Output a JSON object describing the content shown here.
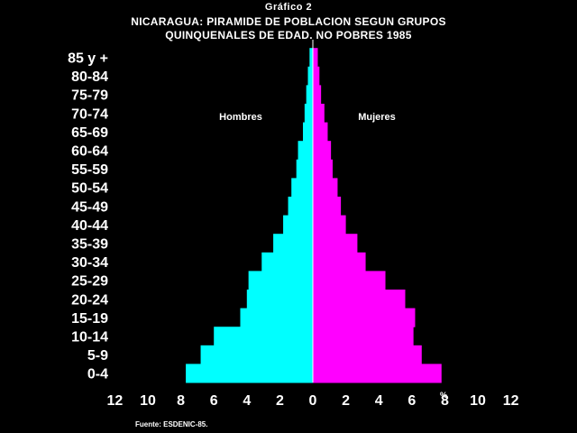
{
  "header": {
    "chart_label": "Gráfico 2",
    "title_line1": "NICARAGUA: PIRAMIDE DE POBLACION SEGUN GRUPOS",
    "title_line2": "QUINQUENALES DE EDAD. NO POBRES 1985"
  },
  "footer": {
    "source": "Fuente: ESDENIC-85."
  },
  "colors": {
    "background": "#000000",
    "hombres": "#00ffff",
    "mujeres": "#ff00ff",
    "text": "#ffffff",
    "axis": "#ffffff"
  },
  "chart_data": {
    "type": "bar",
    "orientation": "horizontal-pyramid",
    "title": "NICARAGUA: PIRAMIDE DE POBLACION SEGUN GRUPOS QUINQUENALES DE EDAD. NO POBRES 1985",
    "xlabel": "%",
    "xlim": [
      -12,
      12
    ],
    "x_tick_values": [
      -12,
      -10,
      -8,
      -6,
      -4,
      -2,
      0,
      2,
      4,
      6,
      8,
      10,
      12
    ],
    "x_tick_labels": [
      "12",
      "10",
      "8",
      "6",
      "4",
      "2",
      "0",
      "2",
      "4",
      "6",
      "8",
      "10",
      "12"
    ],
    "categories": [
      "0-4",
      "5-9",
      "10-14",
      "15-19",
      "20-24",
      "25-29",
      "30-34",
      "35-39",
      "40-44",
      "45-49",
      "50-54",
      "55-59",
      "60-64",
      "65-69",
      "70-74",
      "75-79",
      "80-84",
      "85 y +"
    ],
    "series": [
      {
        "name": "Hombres",
        "color": "#00ffff",
        "values": [
          7.7,
          6.8,
          6.0,
          4.4,
          4.0,
          3.9,
          3.1,
          2.4,
          1.8,
          1.5,
          1.3,
          1.0,
          0.9,
          0.6,
          0.5,
          0.4,
          0.3,
          0.2
        ]
      },
      {
        "name": "Mujeres",
        "color": "#ff00ff",
        "values": [
          7.8,
          6.6,
          6.1,
          6.2,
          5.6,
          4.4,
          3.2,
          2.7,
          2.0,
          1.7,
          1.5,
          1.2,
          1.1,
          0.9,
          0.7,
          0.5,
          0.4,
          0.3
        ]
      }
    ],
    "legend": [
      "Hombres",
      "Mujeres"
    ],
    "legend_placement": "inside-top",
    "grid": false
  }
}
